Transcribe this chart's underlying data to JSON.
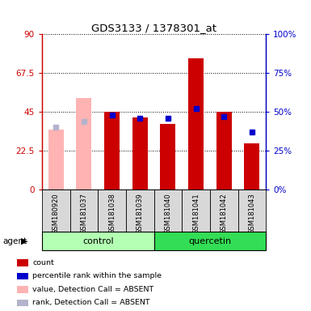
{
  "title": "GDS3133 / 1378301_at",
  "samples": [
    "GSM180920",
    "GSM181037",
    "GSM181038",
    "GSM181039",
    "GSM181040",
    "GSM181041",
    "GSM181042",
    "GSM181043"
  ],
  "count_values": [
    0,
    0,
    45,
    42,
    38,
    76,
    45,
    27
  ],
  "rank_values_pct": [
    40,
    44,
    48,
    46,
    46,
    52,
    47,
    37
  ],
  "absent_value": [
    35,
    53,
    0,
    0,
    0,
    0,
    0,
    0
  ],
  "is_absent": [
    true,
    true,
    false,
    false,
    false,
    false,
    false,
    false
  ],
  "count_color": "#cc0000",
  "rank_color": "#0000cc",
  "absent_value_color": "#ffb3b3",
  "absent_rank_color": "#b3b3cc",
  "group_control_color": "#b3ffb3",
  "group_quercetin_color": "#33dd55",
  "ylim_left": [
    0,
    90
  ],
  "ylim_right": [
    0,
    100
  ],
  "yticks_left": [
    0,
    22.5,
    45,
    67.5,
    90
  ],
  "yticks_right": [
    0,
    25,
    50,
    75,
    100
  ],
  "ytick_labels_left": [
    "0",
    "22.5",
    "45",
    "67.5",
    "90"
  ],
  "ytick_labels_right": [
    "0%",
    "25%",
    "50%",
    "75%",
    "100%"
  ],
  "legend_items": [
    {
      "label": "count",
      "color": "#cc0000"
    },
    {
      "label": "percentile rank within the sample",
      "color": "#0000cc"
    },
    {
      "label": "value, Detection Call = ABSENT",
      "color": "#ffb3b3"
    },
    {
      "label": "rank, Detection Call = ABSENT",
      "color": "#b3b3cc"
    }
  ]
}
